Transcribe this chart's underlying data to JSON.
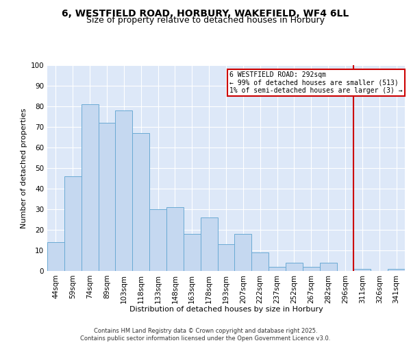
{
  "title1": "6, WESTFIELD ROAD, HORBURY, WAKEFIELD, WF4 6LL",
  "title2": "Size of property relative to detached houses in Horbury",
  "xlabel": "Distribution of detached houses by size in Horbury",
  "ylabel": "Number of detached properties",
  "bar_labels": [
    "44sqm",
    "59sqm",
    "74sqm",
    "89sqm",
    "103sqm",
    "118sqm",
    "133sqm",
    "148sqm",
    "163sqm",
    "178sqm",
    "193sqm",
    "207sqm",
    "222sqm",
    "237sqm",
    "252sqm",
    "267sqm",
    "282sqm",
    "296sqm",
    "311sqm",
    "326sqm",
    "341sqm"
  ],
  "bar_values": [
    14,
    46,
    81,
    72,
    78,
    67,
    30,
    31,
    18,
    26,
    13,
    18,
    9,
    2,
    4,
    2,
    4,
    0,
    1,
    0,
    1
  ],
  "bar_color": "#c5d8f0",
  "bar_edge_color": "#6aaad4",
  "background_color": "#dde8f8",
  "grid_color": "#ffffff",
  "vline_color": "#cc0000",
  "annotation_text": "6 WESTFIELD ROAD: 292sqm\n← 99% of detached houses are smaller (513)\n1% of semi-detached houses are larger (3) →",
  "annotation_box_color": "#cc0000",
  "ylim": [
    0,
    100
  ],
  "yticks": [
    0,
    10,
    20,
    30,
    40,
    50,
    60,
    70,
    80,
    90,
    100
  ],
  "footer": "Contains HM Land Registry data © Crown copyright and database right 2025.\nContains public sector information licensed under the Open Government Licence v3.0.",
  "title_fontsize": 10,
  "subtitle_fontsize": 9,
  "axis_label_fontsize": 8,
  "tick_fontsize": 7.5,
  "footer_fontsize": 6
}
